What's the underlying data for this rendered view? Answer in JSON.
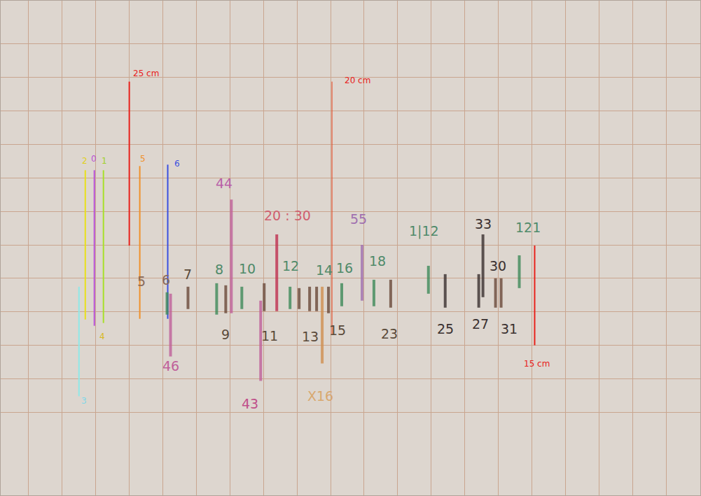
{
  "chart_data": {
    "type": "segments",
    "grid": true,
    "tick_labels": false,
    "xlim": [
      0,
      1001
    ],
    "ylim": [
      709,
      0
    ],
    "xticks": [
      40,
      88,
      136,
      184,
      232,
      280,
      328,
      376,
      424,
      472,
      520,
      568,
      616,
      664,
      712,
      760,
      808,
      856,
      904,
      952
    ],
    "yticks": [
      62,
      110,
      158,
      206,
      254,
      302,
      350,
      398,
      446,
      494,
      542,
      590
    ],
    "segments": [
      {
        "x": 121,
        "y0": 243,
        "y1": 457,
        "color": "#e8e01a",
        "line_style": "solid"
      },
      {
        "x": 134,
        "y0": 243,
        "y1": 466,
        "color": "#b84fd6",
        "line_style": "solid"
      },
      {
        "x": 147,
        "y0": 243,
        "y1": 462,
        "color": "#a8e02a",
        "line_style": "solid"
      },
      {
        "x": 112,
        "y0": 410,
        "y1": 567,
        "color": "#8fe8e8",
        "line_style": "solid"
      },
      {
        "x": 184,
        "y0": 116,
        "y1": 351,
        "color": "#e8201a",
        "line_style": "solid"
      },
      {
        "x": 199,
        "y0": 237,
        "y1": 456,
        "color": "#f0902a",
        "line_style": "solid"
      },
      {
        "x": 239,
        "y0": 235,
        "y1": 456,
        "color": "#3a4fe0",
        "line_style": "solid"
      },
      {
        "x": 474,
        "y0": 116,
        "y1": 478,
        "color": "#e8401a",
        "line_style": "thin"
      },
      {
        "x": 764,
        "y0": 351,
        "y1": 494,
        "color": "#e8201a",
        "line_style": "solid"
      },
      {
        "x": 238,
        "y0": 418,
        "y1": 450,
        "color": "#3f8a5a",
        "line_style": "pencil"
      },
      {
        "x": 243,
        "y0": 420,
        "y1": 510,
        "color": "#c0609a",
        "line_style": "pencil"
      },
      {
        "x": 268,
        "y0": 410,
        "y1": 442,
        "color": "#6b4a3a",
        "line_style": "pencil"
      },
      {
        "x": 309,
        "y0": 405,
        "y1": 450,
        "color": "#3f8a5a",
        "line_style": "pencil"
      },
      {
        "x": 322,
        "y0": 408,
        "y1": 448,
        "color": "#6b4a3a",
        "line_style": "pencil"
      },
      {
        "x": 330,
        "y0": 285,
        "y1": 448,
        "color": "#c0609a",
        "line_style": "pencil"
      },
      {
        "x": 345,
        "y0": 410,
        "y1": 442,
        "color": "#3f8a5a",
        "line_style": "pencil"
      },
      {
        "x": 377,
        "y0": 405,
        "y1": 445,
        "color": "#6b4a3a",
        "line_style": "pencil"
      },
      {
        "x": 372,
        "y0": 430,
        "y1": 545,
        "color": "#c0609a",
        "line_style": "pencil"
      },
      {
        "x": 395,
        "y0": 335,
        "y1": 445,
        "color": "#c03050",
        "line_style": "pencil"
      },
      {
        "x": 414,
        "y0": 410,
        "y1": 442,
        "color": "#3f8a5a",
        "line_style": "pencil"
      },
      {
        "x": 427,
        "y0": 412,
        "y1": 442,
        "color": "#6b4a3a",
        "line_style": "pencil"
      },
      {
        "x": 442,
        "y0": 410,
        "y1": 445,
        "color": "#6b4a3a",
        "line_style": "pencil"
      },
      {
        "x": 452,
        "y0": 410,
        "y1": 445,
        "color": "#6b4a3a",
        "line_style": "pencil"
      },
      {
        "x": 460,
        "y0": 410,
        "y1": 520,
        "color": "#d09050",
        "line_style": "pencil"
      },
      {
        "x": 469,
        "y0": 410,
        "y1": 448,
        "color": "#6b4a3a",
        "line_style": "pencil"
      },
      {
        "x": 488,
        "y0": 405,
        "y1": 438,
        "color": "#3f8a5a",
        "line_style": "pencil"
      },
      {
        "x": 517,
        "y0": 350,
        "y1": 430,
        "color": "#a070b0",
        "line_style": "pencil"
      },
      {
        "x": 534,
        "y0": 400,
        "y1": 438,
        "color": "#3f8a5a",
        "line_style": "pencil"
      },
      {
        "x": 558,
        "y0": 400,
        "y1": 440,
        "color": "#6b4a3a",
        "line_style": "pencil"
      },
      {
        "x": 612,
        "y0": 380,
        "y1": 420,
        "color": "#3f8a5a",
        "line_style": "pencil"
      },
      {
        "x": 636,
        "y0": 392,
        "y1": 440,
        "color": "#3a3030",
        "line_style": "pencil"
      },
      {
        "x": 684,
        "y0": 392,
        "y1": 440,
        "color": "#3a3030",
        "line_style": "pencil"
      },
      {
        "x": 690,
        "y0": 335,
        "y1": 425,
        "color": "#3a3030",
        "line_style": "pencil"
      },
      {
        "x": 708,
        "y0": 398,
        "y1": 440,
        "color": "#6b4a3a",
        "line_style": "pencil"
      },
      {
        "x": 716,
        "y0": 398,
        "y1": 440,
        "color": "#6b4a3a",
        "line_style": "pencil"
      },
      {
        "x": 742,
        "y0": 365,
        "y1": 412,
        "color": "#3f8a5a",
        "line_style": "pencil"
      }
    ],
    "labels": [
      {
        "text": "2",
        "x": 120,
        "y": 230,
        "color": "#e0d01a"
      },
      {
        "text": "0",
        "x": 133,
        "y": 227,
        "color": "#b84fd6"
      },
      {
        "text": "1",
        "x": 148,
        "y": 230,
        "color": "#a0d02a"
      },
      {
        "text": "3",
        "x": 119,
        "y": 574,
        "color": "#7fd8e8"
      },
      {
        "text": "4",
        "x": 145,
        "y": 481,
        "color": "#d8b820"
      },
      {
        "text": "25 cm",
        "x": 208,
        "y": 104,
        "color": "#e8201a"
      },
      {
        "text": "5",
        "x": 203,
        "y": 227,
        "color": "#f0902a"
      },
      {
        "text": "6",
        "x": 252,
        "y": 234,
        "color": "#3a4fe0"
      },
      {
        "text": "20 cm",
        "x": 511,
        "y": 114,
        "color": "#e8201a"
      },
      {
        "text": "15 cm",
        "x": 767,
        "y": 520,
        "color": "#e8201a"
      }
    ],
    "notes": [
      {
        "text": "44",
        "x": 320,
        "y": 262,
        "color": "#b860a8"
      },
      {
        "text": "20 : 30",
        "x": 410,
        "y": 308,
        "color": "#d06070"
      },
      {
        "text": "55",
        "x": 512,
        "y": 313,
        "color": "#a070b0"
      },
      {
        "text": "1|12",
        "x": 606,
        "y": 330,
        "color": "#4f8a6a"
      },
      {
        "text": "33",
        "x": 690,
        "y": 320,
        "color": "#3a3030"
      },
      {
        "text": "121",
        "x": 755,
        "y": 325,
        "color": "#4f8a6a"
      },
      {
        "text": "5",
        "x": 201,
        "y": 402,
        "color": "#8a6a5a"
      },
      {
        "text": "6",
        "x": 236,
        "y": 400,
        "color": "#8a6a5a"
      },
      {
        "text": "7",
        "x": 268,
        "y": 392,
        "color": "#5a4a3a"
      },
      {
        "text": "8",
        "x": 313,
        "y": 385,
        "color": "#4f8a6a"
      },
      {
        "text": "10",
        "x": 353,
        "y": 384,
        "color": "#4f8a6a"
      },
      {
        "text": "12",
        "x": 415,
        "y": 380,
        "color": "#4f8a6a"
      },
      {
        "text": "14",
        "x": 463,
        "y": 386,
        "color": "#4f8a6a"
      },
      {
        "text": "16",
        "x": 492,
        "y": 383,
        "color": "#4f8a6a"
      },
      {
        "text": "18",
        "x": 539,
        "y": 373,
        "color": "#4f8a6a"
      },
      {
        "text": "30",
        "x": 711,
        "y": 380,
        "color": "#3a3030"
      },
      {
        "text": "9",
        "x": 322,
        "y": 478,
        "color": "#5a4a3a"
      },
      {
        "text": "11",
        "x": 385,
        "y": 480,
        "color": "#5a4a3a"
      },
      {
        "text": "13",
        "x": 443,
        "y": 481,
        "color": "#5a4a3a"
      },
      {
        "text": "15",
        "x": 482,
        "y": 472,
        "color": "#5a4a3a"
      },
      {
        "text": "23",
        "x": 556,
        "y": 477,
        "color": "#5a4a3a"
      },
      {
        "text": "25",
        "x": 636,
        "y": 470,
        "color": "#3a3030"
      },
      {
        "text": "27",
        "x": 686,
        "y": 463,
        "color": "#3a3030"
      },
      {
        "text": "31",
        "x": 727,
        "y": 470,
        "color": "#3a3030"
      },
      {
        "text": "46",
        "x": 243,
        "y": 523,
        "color": "#c0609a"
      },
      {
        "text": "43",
        "x": 357,
        "y": 578,
        "color": "#c0508a"
      },
      {
        "text": "X16",
        "x": 457,
        "y": 567,
        "color": "#d8a870"
      }
    ]
  }
}
